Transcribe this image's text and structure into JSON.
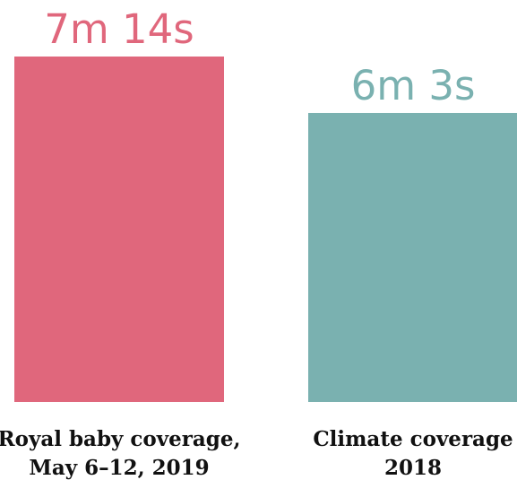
{
  "chart_data": {
    "type": "bar",
    "unit": "seconds",
    "categories": [
      [
        "Royal baby coverage,",
        "May 6–12, 2019"
      ],
      [
        "Climate coverage",
        "2018"
      ]
    ],
    "values": [
      434,
      363
    ],
    "value_labels": [
      "7m 14s",
      "6m 3s"
    ],
    "colors": [
      "#e0677c",
      "#7ab1b0"
    ],
    "ylim": [
      0,
      434
    ],
    "grid": false,
    "title": "",
    "xlabel": "",
    "ylabel": ""
  }
}
